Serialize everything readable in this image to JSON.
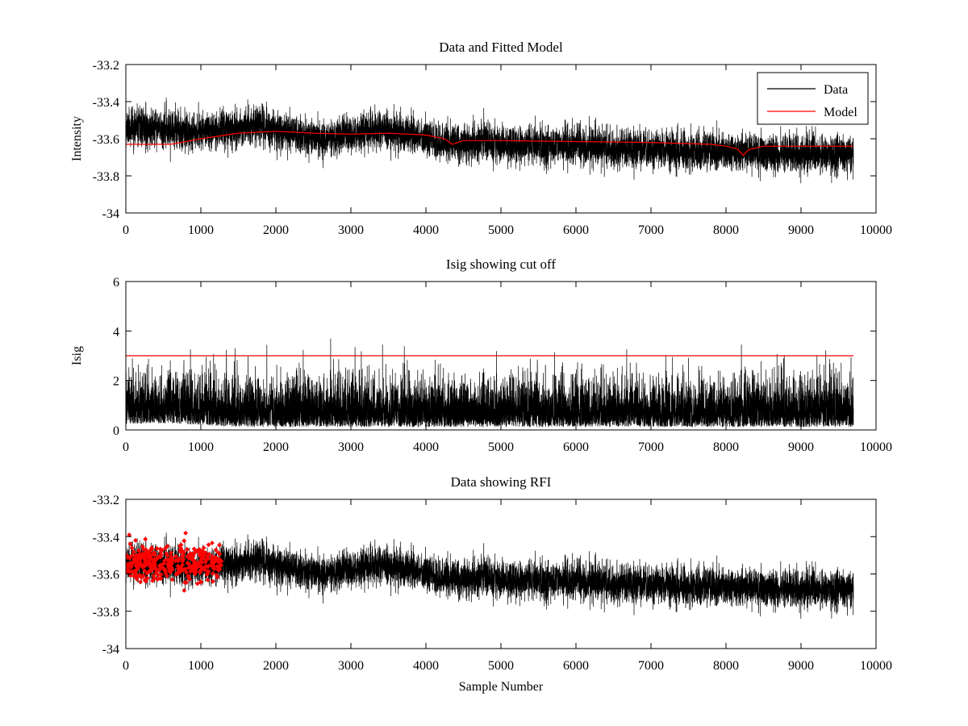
{
  "colors": {
    "data": "#000000",
    "model": "#ff0000",
    "cutoff": "#ff0000",
    "rfi": "#ff0000",
    "axes": "#000000",
    "background": "#ffffff"
  },
  "chart_data": [
    {
      "type": "line",
      "title": "Data and Fitted Model",
      "xlabel": "",
      "ylabel": "Intensity",
      "xlim": [
        0,
        10000
      ],
      "ylim": [
        -34,
        -33.2
      ],
      "xticks": [
        0,
        1000,
        2000,
        3000,
        4000,
        5000,
        6000,
        7000,
        8000,
        9000,
        10000
      ],
      "xtick_labels": [
        "0",
        "1000",
        "2000",
        "3000",
        "4000",
        "5000",
        "6000",
        "7000",
        "8000",
        "9000",
        "10000"
      ],
      "yticks": [
        -34,
        -33.8,
        -33.6,
        -33.4,
        -33.2
      ],
      "ytick_labels": [
        "-34",
        "-33.8",
        "-33.6",
        "-33.4",
        "-33.2"
      ],
      "legend": {
        "position": "top-right",
        "entries": [
          {
            "name": "Data",
            "color": "#000000"
          },
          {
            "name": "Model",
            "color": "#ff0000"
          }
        ]
      },
      "series": [
        {
          "name": "Data",
          "kind": "noise",
          "color": "#000000",
          "n_samples": 9700,
          "trend": [
            [
              0,
              -33.54
            ],
            [
              1000,
              -33.56
            ],
            [
              1800,
              -33.53
            ],
            [
              2500,
              -33.6
            ],
            [
              3450,
              -33.55
            ],
            [
              4300,
              -33.62
            ],
            [
              6000,
              -33.64
            ],
            [
              8000,
              -33.67
            ],
            [
              9700,
              -33.68
            ]
          ],
          "spread": 0.1,
          "seed": 11
        },
        {
          "name": "Model",
          "kind": "line",
          "color": "#ff0000",
          "x": [
            0,
            600,
            1000,
            1500,
            2000,
            2500,
            3000,
            3500,
            4000,
            4250,
            4350,
            4500,
            5000,
            6000,
            7000,
            7800,
            8000,
            8150,
            8230,
            8300,
            8500,
            9000,
            9700
          ],
          "y": [
            -33.63,
            -33.63,
            -33.6,
            -33.57,
            -33.56,
            -33.57,
            -33.575,
            -33.57,
            -33.58,
            -33.6,
            -33.63,
            -33.61,
            -33.61,
            -33.615,
            -33.62,
            -33.63,
            -33.64,
            -33.655,
            -33.69,
            -33.66,
            -33.64,
            -33.64,
            -33.64
          ]
        }
      ]
    },
    {
      "type": "line",
      "title": "Isig showing cut off",
      "xlabel": "",
      "ylabel": "Isig",
      "xlim": [
        0,
        10000
      ],
      "ylim": [
        0,
        6
      ],
      "xticks": [
        0,
        1000,
        2000,
        3000,
        4000,
        5000,
        6000,
        7000,
        8000,
        9000,
        10000
      ],
      "xtick_labels": [
        "0",
        "1000",
        "2000",
        "3000",
        "4000",
        "5000",
        "6000",
        "7000",
        "8000",
        "9000",
        "10000"
      ],
      "yticks": [
        0,
        2,
        4,
        6
      ],
      "ytick_labels": [
        "0",
        "2",
        "4",
        "6"
      ],
      "series": [
        {
          "name": "Isig",
          "kind": "abs-noise",
          "color": "#000000",
          "n_samples": 9700,
          "trend": [
            [
              0,
              1.6
            ],
            [
              600,
              1.8
            ],
            [
              1000,
              1.3
            ],
            [
              1300,
              0.9
            ],
            [
              2000,
              0.75
            ],
            [
              9700,
              0.8
            ]
          ],
          "spread": 0.9,
          "seed": 29
        },
        {
          "name": "Cut off",
          "kind": "line",
          "color": "#ff0000",
          "x": [
            0,
            9700
          ],
          "y": [
            3,
            3
          ]
        }
      ]
    },
    {
      "type": "line",
      "title": "Data showing RFI",
      "xlabel": "Sample Number",
      "ylabel": "",
      "xlim": [
        0,
        10000
      ],
      "ylim": [
        -34,
        -33.2
      ],
      "xticks": [
        0,
        1000,
        2000,
        3000,
        4000,
        5000,
        6000,
        7000,
        8000,
        9000,
        10000
      ],
      "xtick_labels": [
        "0",
        "1000",
        "2000",
        "3000",
        "4000",
        "5000",
        "6000",
        "7000",
        "8000",
        "9000",
        "10000"
      ],
      "yticks": [
        -34,
        -33.8,
        -33.6,
        -33.4,
        -33.2
      ],
      "ytick_labels": [
        "-34",
        "-33.8",
        "-33.6",
        "-33.4",
        "-33.2"
      ],
      "series": [
        {
          "name": "Data",
          "kind": "noise",
          "color": "#000000",
          "n_samples": 9700,
          "trend": [
            [
              0,
              -33.54
            ],
            [
              1000,
              -33.56
            ],
            [
              1800,
              -33.53
            ],
            [
              2500,
              -33.6
            ],
            [
              3450,
              -33.55
            ],
            [
              4300,
              -33.62
            ],
            [
              6000,
              -33.64
            ],
            [
              8000,
              -33.67
            ],
            [
              9700,
              -33.68
            ]
          ],
          "spread": 0.1,
          "seed": 11
        },
        {
          "name": "RFI",
          "kind": "markers",
          "color": "#ff0000",
          "x_range": [
            0,
            1280
          ],
          "n_markers": 360,
          "center": -33.54,
          "spread": 0.1,
          "seed": 47
        }
      ]
    }
  ]
}
